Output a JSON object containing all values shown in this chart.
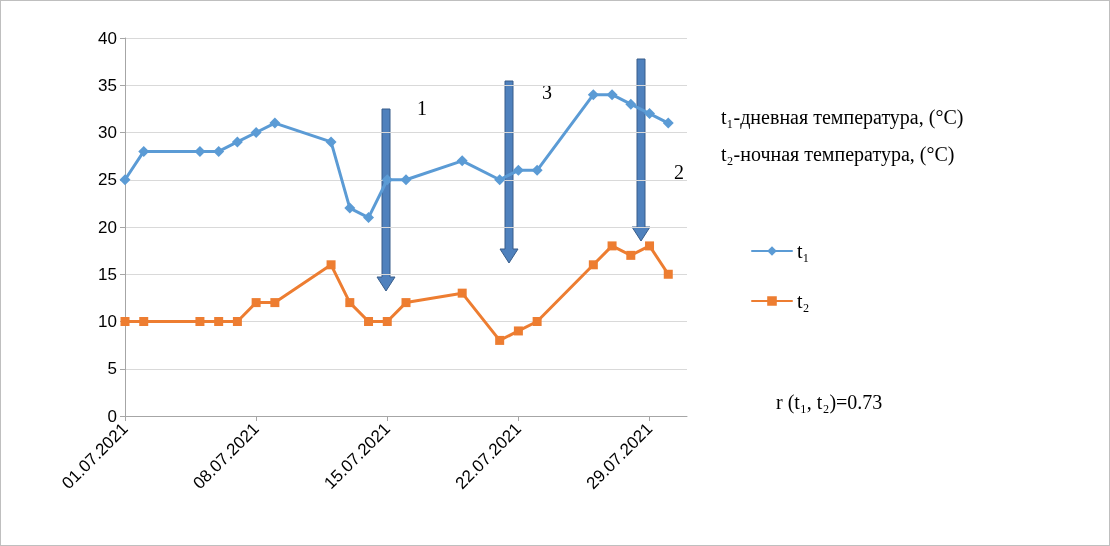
{
  "chart_data": {
    "type": "line",
    "x": [
      "2021-07-01",
      "2021-07-02",
      "2021-07-05",
      "2021-07-06",
      "2021-07-07",
      "2021-07-08",
      "2021-07-09",
      "2021-07-12",
      "2021-07-13",
      "2021-07-14",
      "2021-07-15",
      "2021-07-16",
      "2021-07-19",
      "2021-07-21",
      "2021-07-22",
      "2021-07-23",
      "2021-07-26",
      "2021-07-27",
      "2021-07-28",
      "2021-07-29",
      "2021-07-30"
    ],
    "series": [
      {
        "name": "t₁",
        "color": "#5b9bd5",
        "marker": "diamond",
        "values": [
          25,
          28,
          28,
          28,
          29,
          30,
          31,
          29,
          22,
          21,
          25,
          25,
          27,
          25,
          26,
          26,
          34,
          34,
          33,
          32,
          31
        ]
      },
      {
        "name": "t₂",
        "color": "#ed7d31",
        "marker": "square",
        "values": [
          10,
          10,
          10,
          10,
          10,
          12,
          12,
          16,
          12,
          10,
          10,
          12,
          13,
          8,
          9,
          10,
          16,
          18,
          17,
          18,
          15
        ]
      }
    ],
    "xlim": [
      "2021-07-01",
      "2021-07-31"
    ],
    "xticks": [
      {
        "value": "2021-07-01",
        "label": "01.07.2021"
      },
      {
        "value": "2021-07-08",
        "label": "08.07.2021"
      },
      {
        "value": "2021-07-15",
        "label": "15.07.2021"
      },
      {
        "value": "2021-07-22",
        "label": "22.07.2021"
      },
      {
        "value": "2021-07-29",
        "label": "29.07.2021"
      }
    ],
    "ylim": [
      0,
      40
    ],
    "yticks": [
      0,
      5,
      10,
      15,
      20,
      25,
      30,
      35,
      40
    ],
    "grid": "y",
    "legend": "right",
    "line_style": "solid",
    "annotations": [
      "1",
      "3",
      "2",
      "t₁-дневная температура, (°C)",
      "t₂-ночная температура, (°C)",
      "r (t₁, t₂)=0.73"
    ]
  }
}
